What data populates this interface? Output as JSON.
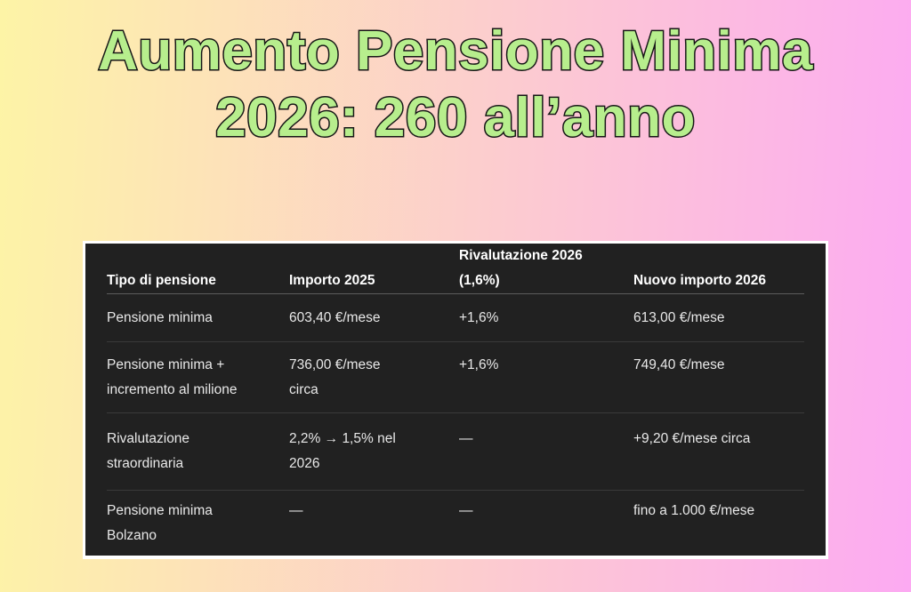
{
  "title": {
    "line1": "Aumento Pensione Minima",
    "line2": "2026: 260 all’anno"
  },
  "table": {
    "headers": [
      "Tipo di pensione",
      "Importo 2025",
      "Rivalutazione 2026\n(1,6%)",
      "Nuovo importo 2026"
    ],
    "rows": [
      {
        "cells": [
          "Pensione minima",
          "603,40 €/mese",
          "+1,6%",
          "613,00 €/mese"
        ]
      },
      {
        "cells": [
          "Pensione minima +\nincremento al milione",
          "736,00 €/mese\ncirca",
          "+1,6%",
          "749,40 €/mese"
        ]
      },
      {
        "cells": [
          "Rivalutazione\nstraordinaria",
          "2,2% → 1,5% nel\n2026",
          "—",
          "+9,20 €/mese circa"
        ]
      },
      {
        "cells": [
          "Pensione minima\nBolzano",
          "—",
          "—",
          "fino a 1.000 €/mese"
        ]
      }
    ]
  },
  "colors": {
    "background-left": "#fdf4a6",
    "background-right": "#fcaaf2",
    "title-green": "#b7ee8d",
    "title-outline": "#161616",
    "table-bg": "#212121",
    "table-border": "#ffffff",
    "header-text": "#ffffff",
    "body-text": "#e8e8e8",
    "header-divider": "#5c5c5c",
    "row-divider": "#3a3a3a"
  }
}
